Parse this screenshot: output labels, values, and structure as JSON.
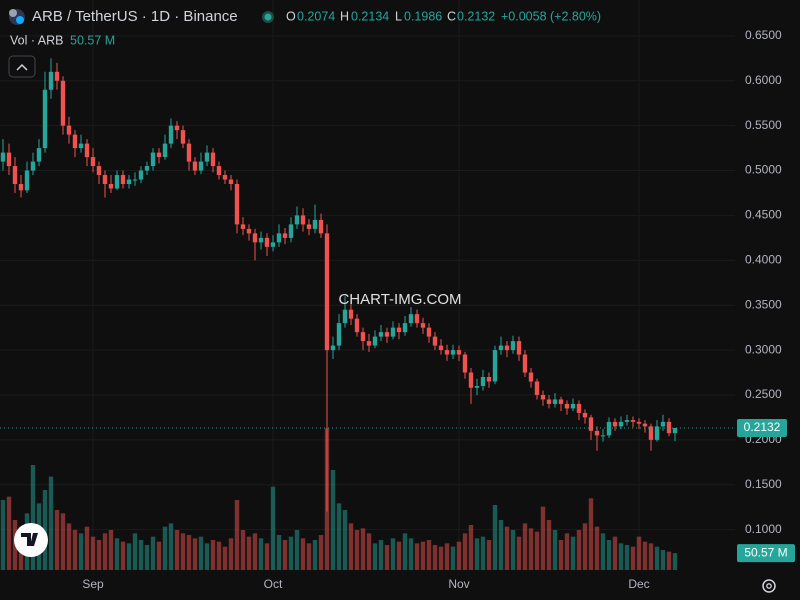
{
  "chart_data": {
    "type": "candlestick",
    "title": "ARB / TetherUS · 1D · Binance",
    "ohlc_labels": [
      "O",
      "H",
      "L",
      "C"
    ],
    "change_label": "+0.0058 (+2.80%)",
    "volume_title": "Vol · ARB",
    "volume_label": "50.57 M",
    "watermark": "CHART-IMG.COM",
    "up_color": "#26a69a",
    "down_color": "#ef5350",
    "grid": true,
    "ylim": [
      0.055,
      0.69
    ],
    "yticks": [
      {
        "value": 0.65,
        "label": "0.6500"
      },
      {
        "value": 0.6,
        "label": "0.6000"
      },
      {
        "value": 0.55,
        "label": "0.5500"
      },
      {
        "value": 0.5,
        "label": "0.5000"
      },
      {
        "value": 0.45,
        "label": "0.4500"
      },
      {
        "value": 0.4,
        "label": "0.4000"
      },
      {
        "value": 0.35,
        "label": "0.3500"
      },
      {
        "value": 0.3,
        "label": "0.3000"
      },
      {
        "value": 0.25,
        "label": "0.2500"
      },
      {
        "value": 0.2,
        "label": "0.2000"
      },
      {
        "value": 0.15,
        "label": "0.1500"
      },
      {
        "value": 0.1,
        "label": "0.1000"
      }
    ],
    "volume_lim": [
      0,
      450
    ],
    "categories": [
      null,
      null,
      null,
      null,
      null,
      null,
      null,
      null,
      null,
      null,
      null,
      null,
      null,
      null,
      null,
      "Sep",
      null,
      null,
      null,
      null,
      null,
      null,
      null,
      null,
      null,
      null,
      null,
      null,
      null,
      null,
      null,
      null,
      null,
      null,
      null,
      null,
      null,
      null,
      null,
      null,
      null,
      null,
      null,
      null,
      null,
      "Oct",
      null,
      null,
      null,
      null,
      null,
      null,
      null,
      null,
      null,
      null,
      null,
      null,
      null,
      null,
      null,
      null,
      null,
      null,
      null,
      null,
      null,
      null,
      null,
      null,
      null,
      null,
      null,
      null,
      null,
      null,
      "Nov",
      null,
      null,
      null,
      null,
      null,
      null,
      null,
      null,
      null,
      null,
      null,
      null,
      null,
      null,
      null,
      null,
      null,
      null,
      null,
      null,
      null,
      null,
      null,
      null,
      null,
      null,
      null,
      null,
      null,
      "Dec",
      null,
      null,
      null,
      null,
      null,
      null
    ],
    "open": [
      0.51,
      0.52,
      0.505,
      0.485,
      0.478,
      0.5,
      0.51,
      0.525,
      0.59,
      0.61,
      0.6,
      0.55,
      0.54,
      0.525,
      0.53,
      0.515,
      0.505,
      0.495,
      0.485,
      0.48,
      0.495,
      0.485,
      0.49,
      0.49,
      0.5,
      0.505,
      0.52,
      0.515,
      0.53,
      0.55,
      0.545,
      0.53,
      0.51,
      0.5,
      0.51,
      0.52,
      0.505,
      0.495,
      0.49,
      0.485,
      0.44,
      0.435,
      0.43,
      0.42,
      0.425,
      0.415,
      0.42,
      0.43,
      0.425,
      0.44,
      0.45,
      0.44,
      0.435,
      0.445,
      0.43,
      0.3,
      0.305,
      0.33,
      0.345,
      0.335,
      0.32,
      0.31,
      0.305,
      0.315,
      0.32,
      0.315,
      0.325,
      0.32,
      0.33,
      0.34,
      0.33,
      0.325,
      0.315,
      0.305,
      0.3,
      0.295,
      0.3,
      0.295,
      0.275,
      0.258,
      0.26,
      0.27,
      0.265,
      0.3,
      0.305,
      0.3,
      0.31,
      0.295,
      0.275,
      0.265,
      0.25,
      0.245,
      0.24,
      0.245,
      0.24,
      0.235,
      0.24,
      0.23,
      0.225,
      0.21,
      0.205,
      0.205,
      0.22,
      0.215,
      0.22,
      0.222,
      0.22,
      0.218,
      0.215,
      0.2,
      0.215,
      0.22,
      0.2074
    ],
    "high": [
      0.535,
      0.53,
      0.515,
      0.495,
      0.51,
      0.52,
      0.535,
      0.61,
      0.625,
      0.62,
      0.605,
      0.56,
      0.545,
      0.54,
      0.535,
      0.525,
      0.51,
      0.5,
      0.495,
      0.5,
      0.5,
      0.495,
      0.498,
      0.505,
      0.51,
      0.525,
      0.525,
      0.54,
      0.558,
      0.555,
      0.55,
      0.535,
      0.515,
      0.52,
      0.528,
      0.525,
      0.51,
      0.5,
      0.495,
      0.49,
      0.448,
      0.44,
      0.435,
      0.432,
      0.43,
      0.428,
      0.44,
      0.436,
      0.448,
      0.46,
      0.458,
      0.446,
      0.462,
      0.452,
      0.44,
      0.315,
      0.34,
      0.36,
      0.352,
      0.34,
      0.325,
      0.318,
      0.322,
      0.328,
      0.325,
      0.332,
      0.33,
      0.338,
      0.348,
      0.345,
      0.336,
      0.33,
      0.32,
      0.312,
      0.306,
      0.306,
      0.305,
      0.298,
      0.28,
      0.268,
      0.278,
      0.275,
      0.305,
      0.315,
      0.31,
      0.316,
      0.315,
      0.3,
      0.28,
      0.268,
      0.255,
      0.25,
      0.252,
      0.248,
      0.244,
      0.246,
      0.244,
      0.234,
      0.228,
      0.215,
      0.212,
      0.225,
      0.224,
      0.226,
      0.228,
      0.226,
      0.224,
      0.222,
      0.218,
      0.222,
      0.228,
      0.224,
      0.2134
    ],
    "low": [
      0.5,
      0.495,
      0.475,
      0.47,
      0.475,
      0.495,
      0.505,
      0.52,
      0.58,
      0.59,
      0.54,
      0.53,
      0.515,
      0.52,
      0.505,
      0.498,
      0.485,
      0.47,
      0.475,
      0.478,
      0.48,
      0.48,
      0.483,
      0.486,
      0.495,
      0.5,
      0.508,
      0.512,
      0.525,
      0.535,
      0.525,
      0.5,
      0.495,
      0.496,
      0.505,
      0.498,
      0.49,
      0.485,
      0.478,
      0.43,
      0.428,
      0.422,
      0.4,
      0.412,
      0.405,
      0.41,
      0.415,
      0.418,
      0.42,
      0.435,
      0.432,
      0.428,
      0.43,
      0.425,
      0.12,
      0.29,
      0.3,
      0.325,
      0.328,
      0.315,
      0.3,
      0.298,
      0.302,
      0.31,
      0.308,
      0.312,
      0.312,
      0.316,
      0.326,
      0.325,
      0.318,
      0.308,
      0.3,
      0.295,
      0.288,
      0.29,
      0.288,
      0.268,
      0.24,
      0.25,
      0.255,
      0.258,
      0.262,
      0.295,
      0.292,
      0.296,
      0.288,
      0.27,
      0.258,
      0.245,
      0.238,
      0.235,
      0.236,
      0.232,
      0.228,
      0.232,
      0.222,
      0.218,
      0.2,
      0.188,
      0.198,
      0.202,
      0.21,
      0.212,
      0.216,
      0.214,
      0.212,
      0.208,
      0.188,
      0.198,
      0.21,
      0.204,
      0.1986
    ],
    "close": [
      0.52,
      0.505,
      0.485,
      0.478,
      0.5,
      0.51,
      0.525,
      0.59,
      0.61,
      0.6,
      0.55,
      0.54,
      0.525,
      0.53,
      0.515,
      0.505,
      0.495,
      0.485,
      0.48,
      0.495,
      0.485,
      0.49,
      0.49,
      0.5,
      0.505,
      0.52,
      0.515,
      0.53,
      0.55,
      0.545,
      0.53,
      0.51,
      0.5,
      0.51,
      0.52,
      0.505,
      0.495,
      0.49,
      0.485,
      0.44,
      0.435,
      0.43,
      0.42,
      0.425,
      0.415,
      0.42,
      0.43,
      0.425,
      0.44,
      0.45,
      0.44,
      0.435,
      0.445,
      0.43,
      0.3,
      0.305,
      0.33,
      0.345,
      0.335,
      0.32,
      0.31,
      0.305,
      0.315,
      0.32,
      0.315,
      0.325,
      0.32,
      0.33,
      0.34,
      0.33,
      0.325,
      0.315,
      0.305,
      0.3,
      0.295,
      0.3,
      0.295,
      0.275,
      0.258,
      0.26,
      0.27,
      0.265,
      0.3,
      0.305,
      0.3,
      0.31,
      0.295,
      0.275,
      0.265,
      0.25,
      0.245,
      0.24,
      0.245,
      0.24,
      0.235,
      0.24,
      0.23,
      0.225,
      0.21,
      0.205,
      0.205,
      0.22,
      0.215,
      0.22,
      0.222,
      0.22,
      0.218,
      0.215,
      0.2,
      0.215,
      0.22,
      0.2074,
      0.2132
    ],
    "volume": [
      210,
      220,
      150,
      130,
      170,
      315,
      200,
      240,
      280,
      180,
      170,
      140,
      120,
      110,
      130,
      100,
      90,
      110,
      120,
      95,
      85,
      80,
      110,
      90,
      75,
      100,
      85,
      130,
      140,
      120,
      110,
      105,
      95,
      100,
      80,
      90,
      85,
      70,
      95,
      210,
      120,
      100,
      110,
      95,
      80,
      250,
      105,
      90,
      100,
      120,
      95,
      80,
      90,
      105,
      425,
      300,
      200,
      180,
      140,
      120,
      125,
      110,
      80,
      90,
      75,
      95,
      85,
      110,
      95,
      80,
      85,
      90,
      75,
      70,
      80,
      70,
      85,
      110,
      135,
      95,
      100,
      90,
      195,
      150,
      130,
      120,
      100,
      140,
      125,
      115,
      190,
      150,
      120,
      90,
      110,
      100,
      120,
      140,
      215,
      130,
      110,
      90,
      100,
      80,
      75,
      70,
      100,
      85,
      80,
      70,
      60,
      55,
      50.57
    ]
  }
}
